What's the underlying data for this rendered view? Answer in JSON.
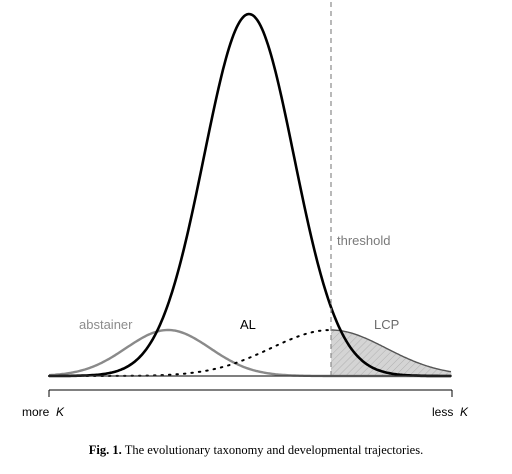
{
  "diagram": {
    "curve_labels": {
      "threshold": "threshold",
      "abstainer": "abstainer",
      "al": "AL",
      "lcp": "LCP"
    },
    "axis": {
      "left_text": "more",
      "right_text": "less",
      "variable": "K"
    },
    "caption": {
      "number": "Fig. 1.",
      "text": "The evolutionary taxonomy and developmental trajectories."
    },
    "colors": {
      "al_curve": "#000000",
      "abstainer_curve": "#8a8a8a",
      "lcp_curve": "#555555",
      "lcp_fill": "#d4d4d4",
      "threshold_line": "#8a8a8a",
      "axis": "#000000"
    }
  }
}
